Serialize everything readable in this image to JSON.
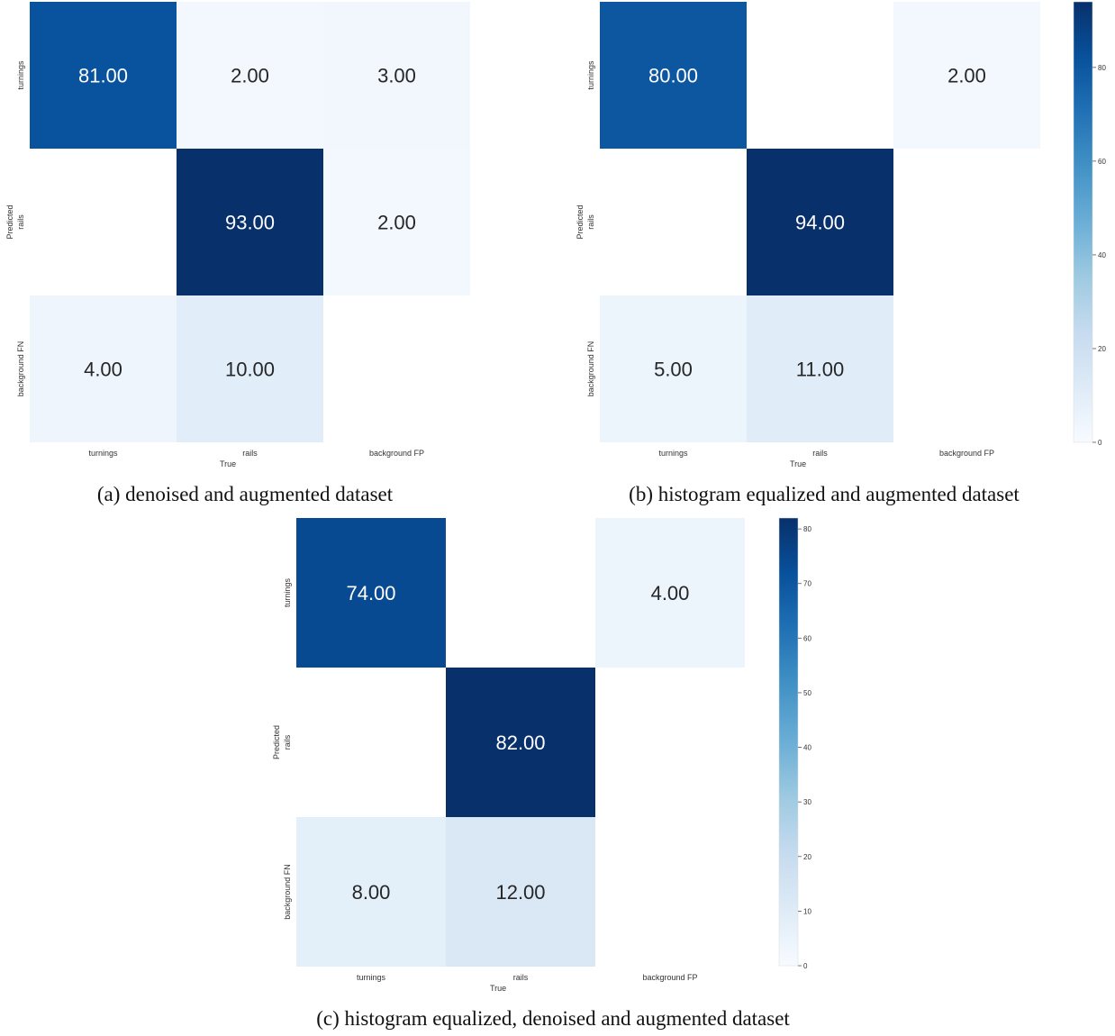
{
  "chart_data": [
    {
      "type": "heatmap",
      "caption": "(a) denoised and augmented dataset",
      "xlabel": "True",
      "ylabel": "Predicted",
      "x_categories": [
        "turnings",
        "rails",
        "background FP"
      ],
      "y_categories": [
        "turnings",
        "rails",
        "background FN"
      ],
      "values": [
        [
          81,
          2,
          3
        ],
        [
          null,
          93,
          2
        ],
        [
          4,
          10,
          null
        ]
      ],
      "value_labels": [
        [
          "81.00",
          "2.00",
          "3.00"
        ],
        [
          "",
          "93.00",
          "2.00"
        ],
        [
          "4.00",
          "10.00",
          ""
        ]
      ],
      "vmax": 93,
      "colorbar": null,
      "colormap": "Blues"
    },
    {
      "type": "heatmap",
      "caption": "(b) histogram equalized and augmented dataset",
      "xlabel": "True",
      "ylabel": "Predicted",
      "x_categories": [
        "turnings",
        "rails",
        "background FP"
      ],
      "y_categories": [
        "turnings",
        "rails",
        "background FN"
      ],
      "values": [
        [
          80,
          null,
          2
        ],
        [
          null,
          94,
          null
        ],
        [
          5,
          11,
          null
        ]
      ],
      "value_labels": [
        [
          "80.00",
          "",
          "2.00"
        ],
        [
          "",
          "94.00",
          ""
        ],
        [
          "5.00",
          "11.00",
          ""
        ]
      ],
      "vmax": 94,
      "colorbar": {
        "ticks": [
          "0",
          "20",
          "40",
          "60",
          "80"
        ],
        "tick_values": [
          0,
          20,
          40,
          60,
          80
        ]
      },
      "colormap": "Blues"
    },
    {
      "type": "heatmap",
      "caption": "(c) histogram equalized, denoised and augmented dataset",
      "xlabel": "True",
      "ylabel": "Predicted",
      "x_categories": [
        "turnings",
        "rails",
        "background FP"
      ],
      "y_categories": [
        "turnings",
        "rails",
        "background FN"
      ],
      "values": [
        [
          74,
          null,
          4
        ],
        [
          null,
          82,
          null
        ],
        [
          8,
          12,
          null
        ]
      ],
      "value_labels": [
        [
          "74.00",
          "",
          "4.00"
        ],
        [
          "",
          "82.00",
          ""
        ],
        [
          "8.00",
          "12.00",
          ""
        ]
      ],
      "vmax": 82,
      "colorbar": {
        "ticks": [
          "0",
          "10",
          "20",
          "30",
          "40",
          "50",
          "60",
          "70",
          "80"
        ],
        "tick_values": [
          0,
          10,
          20,
          30,
          40,
          50,
          60,
          70,
          80
        ]
      },
      "colormap": "Blues"
    }
  ]
}
